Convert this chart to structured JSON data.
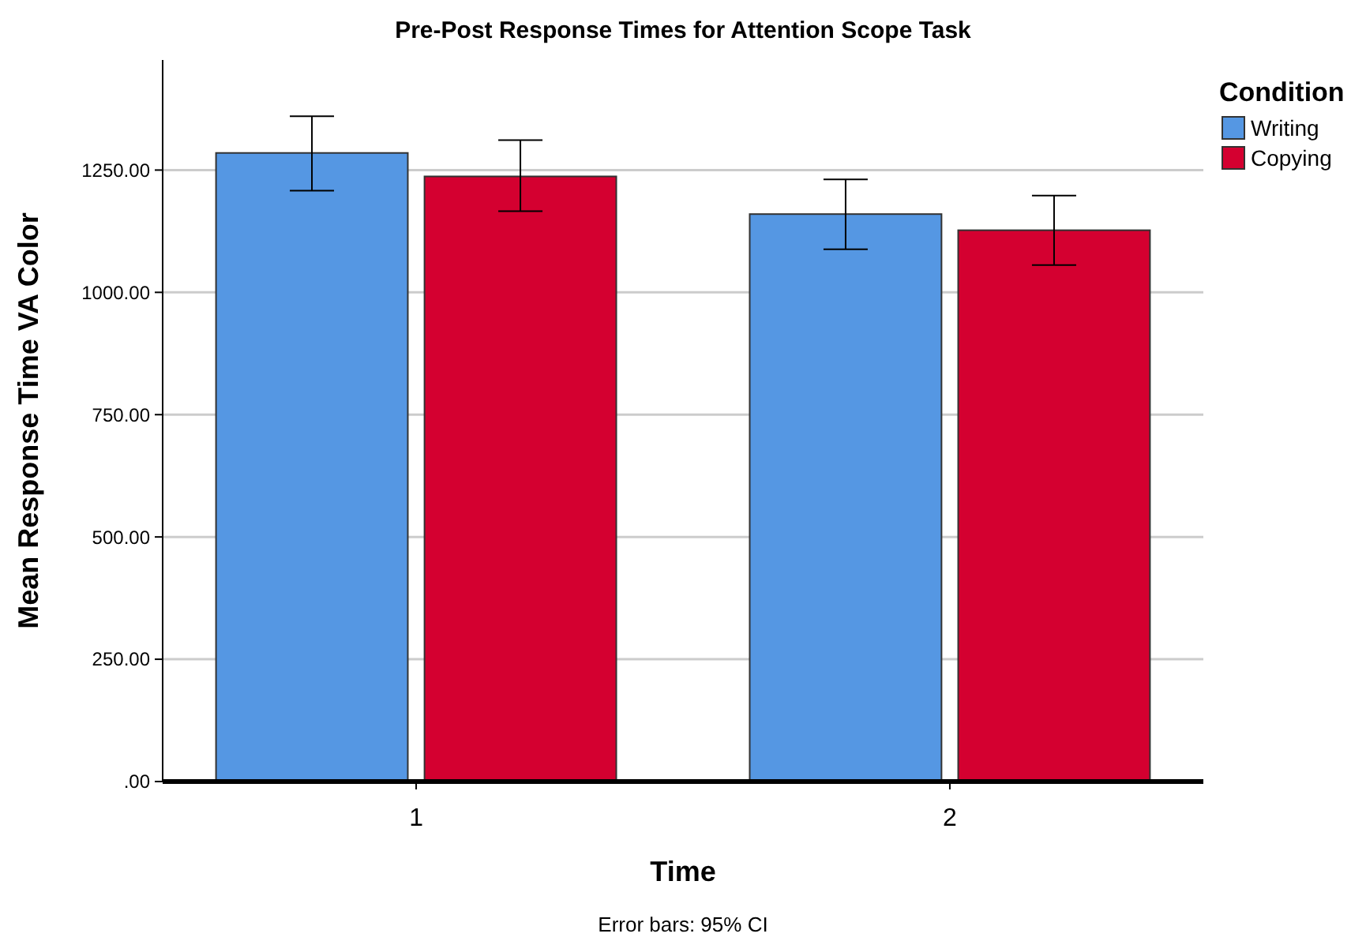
{
  "chart_data": {
    "type": "bar",
    "title": "Pre-Post Response Times for Attention Scope Task",
    "xlabel": "Time",
    "ylabel": "Mean Response Time VA Color",
    "legend_title": "Condition",
    "legend": "top right",
    "grid": "y",
    "categories": [
      "1",
      "2"
    ],
    "series": [
      {
        "name": "Writing",
        "color": "#5597e3",
        "values": [
          1285,
          1160
        ],
        "errors": [
          [
            1208,
            1360
          ],
          [
            1088,
            1231
          ]
        ]
      },
      {
        "name": "Copying",
        "color": "#d40030",
        "values": [
          1237,
          1127
        ],
        "errors": [
          [
            1166,
            1311
          ],
          [
            1056,
            1198
          ]
        ]
      }
    ],
    "ylim": [
      0,
      1475
    ],
    "yticks": [
      {
        "value": 0,
        "label": ".00"
      },
      {
        "value": 250,
        "label": "250.00"
      },
      {
        "value": 500,
        "label": "500.00"
      },
      {
        "value": 750,
        "label": "750.00"
      },
      {
        "value": 1000,
        "label": "1000.00"
      },
      {
        "value": 1250,
        "label": "1250.00"
      }
    ],
    "annotations": [
      "Error bars: 95% CI"
    ]
  }
}
